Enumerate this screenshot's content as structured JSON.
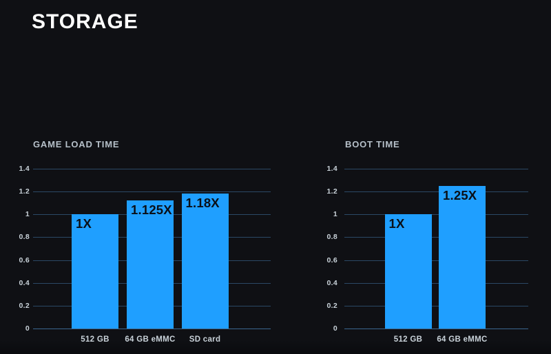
{
  "page": {
    "title": "STORAGE"
  },
  "colors": {
    "background": "#0f1014",
    "page_title_text": "#ffffff",
    "chart_title_text": "#b6c0c9",
    "axis_label_text": "#c9d2d9",
    "gridline": "#2b4966",
    "baseline": "#3c6890",
    "bar_fill": "#1f9fff",
    "bar_label_text": "#0a1018"
  },
  "chart_data": [
    {
      "type": "bar",
      "title": "GAME LOAD TIME",
      "categories": [
        "512 GB",
        "64 GB eMMC",
        "SD card"
      ],
      "values": [
        1,
        1.125,
        1.18
      ],
      "bar_labels": [
        "1X",
        "1.125X",
        "1.18X"
      ],
      "xlabel": "",
      "ylabel": "",
      "ylim": [
        0,
        1.4
      ],
      "yticks": [
        "1.4",
        "1.2",
        "1",
        "0.8",
        "0.6",
        "0.4",
        "0.2",
        "0"
      ],
      "grid": true,
      "legend": "none"
    },
    {
      "type": "bar",
      "title": "BOOT TIME",
      "categories": [
        "512 GB",
        "64 GB eMMC"
      ],
      "values": [
        1,
        1.25
      ],
      "bar_labels": [
        "1X",
        "1.25X"
      ],
      "xlabel": "",
      "ylabel": "",
      "ylim": [
        0,
        1.4
      ],
      "yticks": [
        "1.4",
        "1.2",
        "1",
        "0.8",
        "0.6",
        "0.4",
        "0.2",
        "0"
      ],
      "grid": true,
      "legend": "none"
    }
  ]
}
